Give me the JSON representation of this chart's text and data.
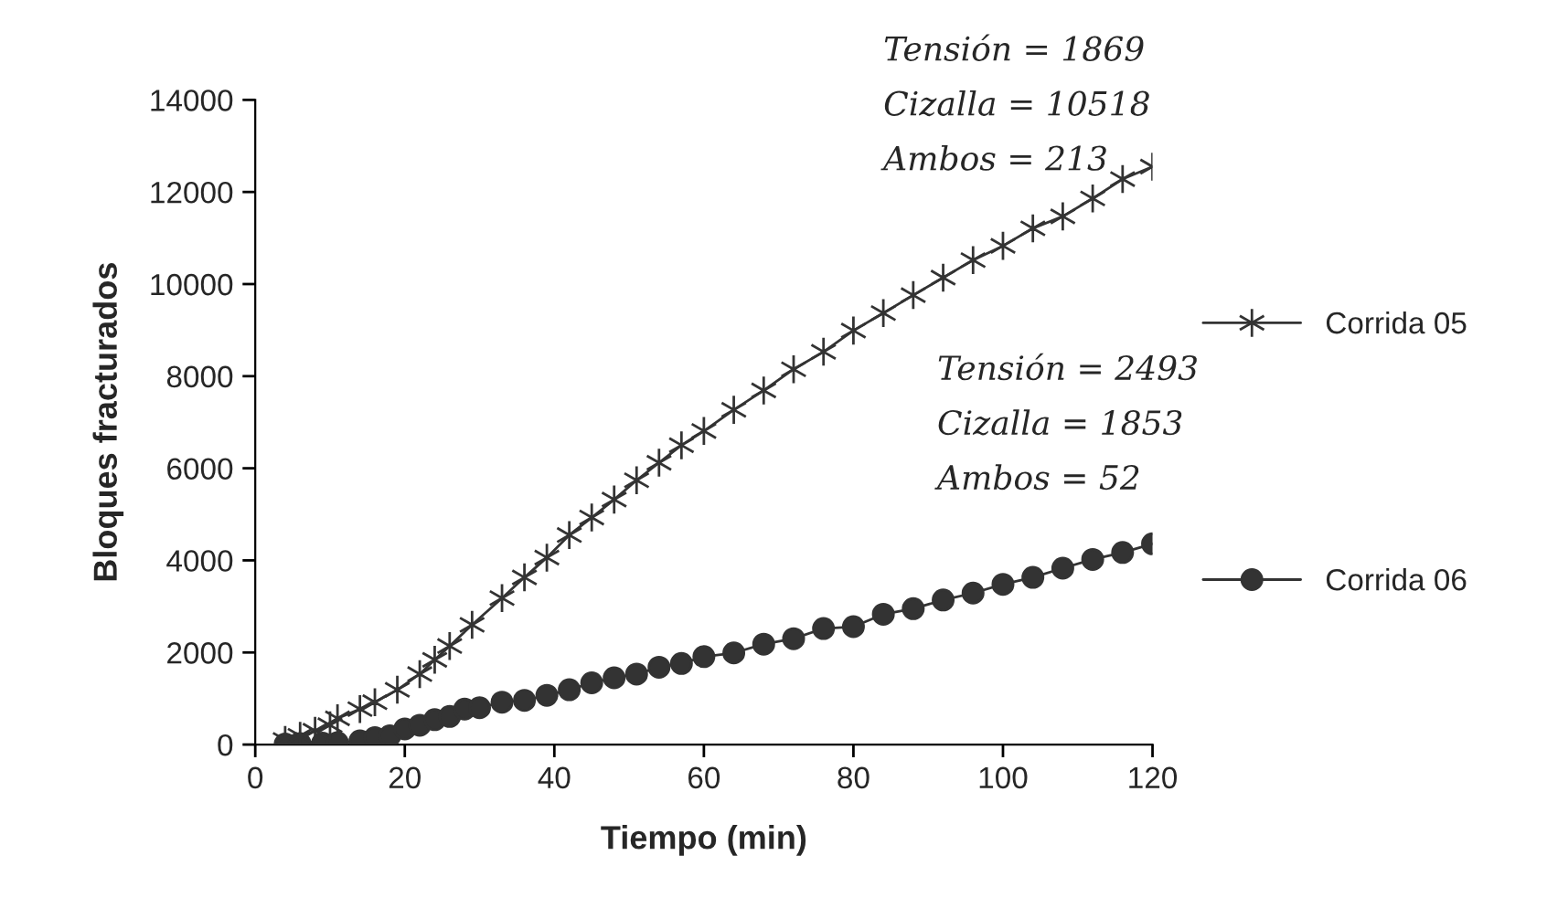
{
  "chart_data": {
    "type": "line",
    "xlabel": "Tiempo (min)",
    "ylabel": "Bloques fracturados",
    "xlim": [
      0,
      120
    ],
    "xticks": [
      0,
      20,
      40,
      60,
      80,
      100,
      120
    ],
    "ylim": [
      0,
      14000
    ],
    "yticks": [
      0,
      2000,
      4000,
      6000,
      8000,
      10000,
      12000,
      14000
    ],
    "grid": false,
    "legend": "right",
    "series": [
      {
        "name": "Corrida 05",
        "color": "#333333",
        "marker": "cross",
        "x": [
          4,
          6,
          8,
          10,
          11,
          14,
          16,
          19,
          22,
          24,
          26,
          29,
          33,
          36,
          39,
          42,
          45,
          48,
          51,
          54,
          57,
          60,
          64,
          68,
          72,
          76,
          80,
          84,
          88,
          92,
          96,
          100,
          104,
          108,
          112,
          116,
          120
        ],
        "values": [
          100,
          190,
          300,
          420,
          570,
          770,
          920,
          1190,
          1530,
          1840,
          2140,
          2600,
          3180,
          3630,
          4060,
          4550,
          4930,
          5320,
          5740,
          6120,
          6500,
          6810,
          7270,
          7690,
          8150,
          8530,
          8990,
          9370,
          9760,
          10140,
          10520,
          10830,
          11210,
          11470,
          11860,
          12280,
          12550
        ]
      },
      {
        "name": "Corrida 06",
        "color": "#333333",
        "marker": "circle",
        "x": [
          4,
          6,
          9,
          11,
          14,
          16,
          18,
          20,
          22,
          24,
          26,
          28,
          30,
          33,
          36,
          39,
          42,
          45,
          48,
          51,
          54,
          57,
          60,
          64,
          68,
          72,
          76,
          80,
          84,
          88,
          92,
          96,
          100,
          104,
          108,
          112,
          116,
          120
        ],
        "values": [
          10,
          20,
          30,
          40,
          80,
          150,
          190,
          340,
          420,
          540,
          610,
          770,
          800,
          920,
          960,
          1070,
          1190,
          1340,
          1450,
          1530,
          1680,
          1760,
          1910,
          1990,
          2180,
          2300,
          2520,
          2560,
          2830,
          2950,
          3140,
          3290,
          3480,
          3630,
          3830,
          4020,
          4170,
          4360
        ]
      }
    ],
    "annotations": [
      "Tensión = 1869",
      "Cizalla = 10518",
      "Ambos = 213",
      "Tensión = 2493",
      "Cizalla = 1853",
      "Ambos = 52"
    ]
  }
}
